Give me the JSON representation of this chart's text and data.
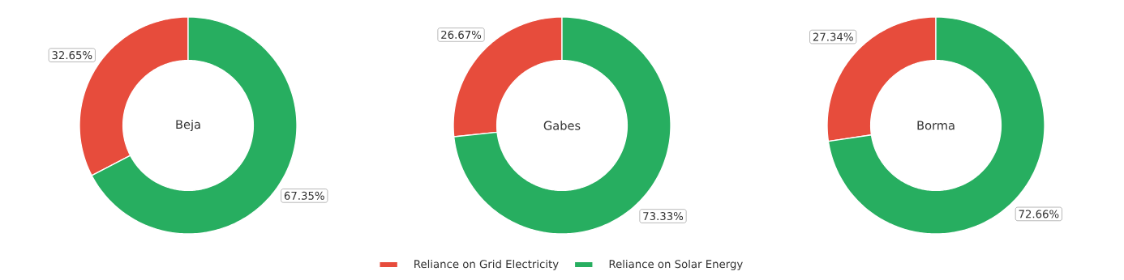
{
  "chart_data": [
    {
      "type": "donut",
      "title": "Beja",
      "categories": [
        null,
        null
      ],
      "values": [
        32.65,
        67.35
      ],
      "colors": [
        "#e74c3c",
        "#27ae60"
      ],
      "value_labels": [
        "32.65%",
        "67.35%"
      ]
    },
    {
      "type": "donut",
      "title": "Gabes",
      "categories": [
        "Reliance on Grid Electricity",
        "Reliance on Solar Energy"
      ],
      "values": [
        26.67,
        73.33
      ],
      "colors": [
        "#e74c3c",
        "#27ae60"
      ],
      "value_labels": [
        "26.67%",
        "73.33%"
      ],
      "legend": "bottom"
    },
    {
      "type": "donut",
      "title": "Borma",
      "categories": [
        null,
        null
      ],
      "values": [
        27.34,
        72.66
      ],
      "colors": [
        "#e74c3c",
        "#27ae60"
      ],
      "value_labels": [
        "27.34%",
        "72.66%"
      ]
    }
  ]
}
